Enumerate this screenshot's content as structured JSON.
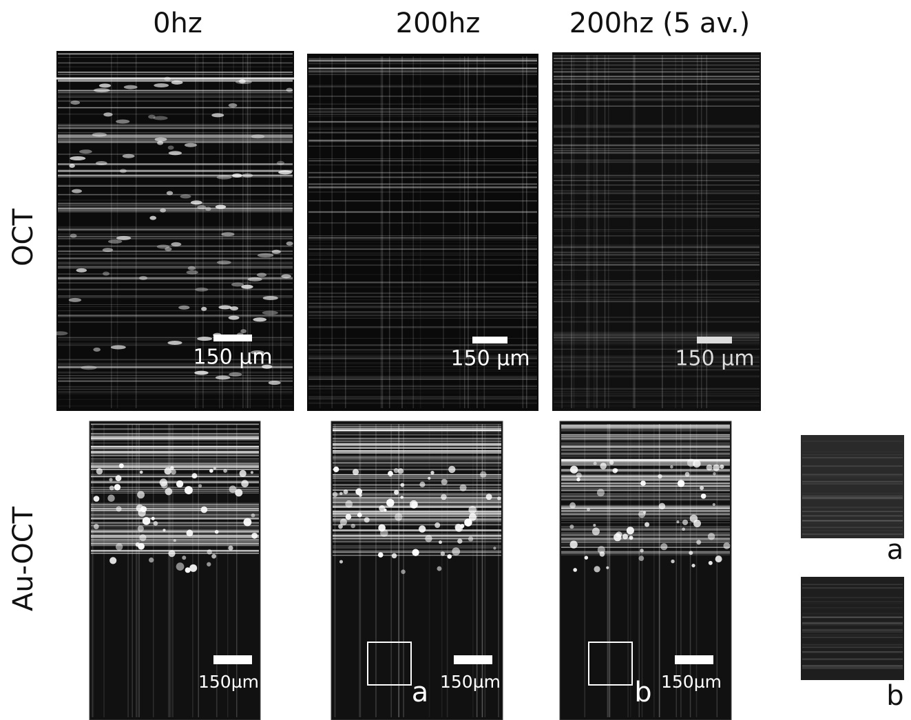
{
  "columns": [
    "0hz",
    "200hz",
    "200hz (5 av.)"
  ],
  "rows": [
    "OCT",
    "Au-OCT"
  ],
  "oct_panels": [
    {
      "scale_label": "150 µm"
    },
    {
      "scale_label": "150 µm"
    },
    {
      "scale_label": "150 µm"
    }
  ],
  "au_oct_panels": [
    {
      "scale_label": "150µm"
    },
    {
      "scale_label": "150µm",
      "roi_label": "a"
    },
    {
      "scale_label": "150µm",
      "roi_label": "b"
    }
  ],
  "insets": [
    {
      "label": "a"
    },
    {
      "label": "b"
    }
  ]
}
